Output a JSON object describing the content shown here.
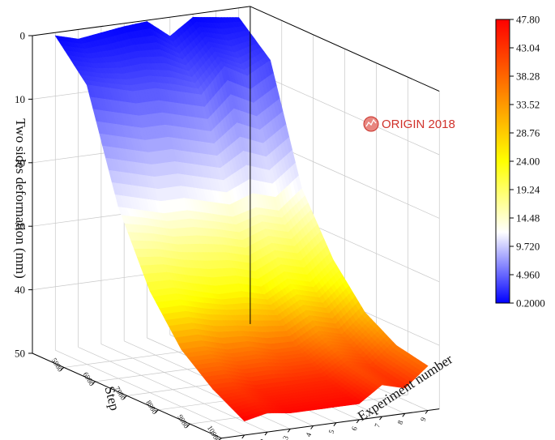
{
  "chart_data": {
    "type": "surface",
    "title": "",
    "xlabel": "Experiment number",
    "ylabel": "Step",
    "zlabel": "Two sides deformation (mm)",
    "x_ticks": [
      "1",
      "2",
      "3",
      "4",
      "5",
      "6",
      "7",
      "8",
      "9"
    ],
    "y_ticks": [
      "5980",
      "6980",
      "7980",
      "8980",
      "9980",
      "10980"
    ],
    "z_ticks": [
      "0",
      "10",
      "20",
      "30",
      "40",
      "50"
    ],
    "zlim": [
      0,
      50
    ],
    "z_inverted": true,
    "colorbar": {
      "ticks": [
        "47.80",
        "43.04",
        "38.28",
        "33.52",
        "28.76",
        "24.00",
        "19.24",
        "14.48",
        "9.720",
        "4.960",
        "0.2000"
      ],
      "min": 0.2,
      "max": 47.8,
      "colors": [
        "#0000ff",
        "#ffffff",
        "#ffff00",
        "#ff0000"
      ]
    },
    "surface": {
      "experiments": [
        1,
        2,
        3,
        4,
        5,
        6,
        7,
        8,
        9
      ],
      "steps": [
        4980,
        5980,
        6980,
        7980,
        8980,
        9980,
        10980
      ],
      "z": [
        [
          0.5,
          6,
          23,
          34,
          41,
          45,
          47.8
        ],
        [
          1.5,
          7,
          24,
          34,
          41,
          45,
          47
        ],
        [
          1,
          8,
          25,
          35,
          42,
          46,
          47.5
        ],
        [
          0.5,
          8,
          25,
          36,
          42,
          46,
          47.5
        ],
        [
          0.2,
          9,
          26,
          36,
          43,
          46,
          47.5
        ],
        [
          3,
          10,
          27,
          37,
          43,
          46,
          47.5
        ],
        [
          0.5,
          6,
          26,
          35,
          41,
          44,
          45
        ],
        [
          1,
          8,
          27,
          36,
          42,
          45,
          46
        ],
        [
          1.5,
          6,
          24,
          33,
          39,
          42,
          43
        ]
      ]
    },
    "grid": true
  },
  "watermark": {
    "text": "ORIGIN 2018"
  }
}
